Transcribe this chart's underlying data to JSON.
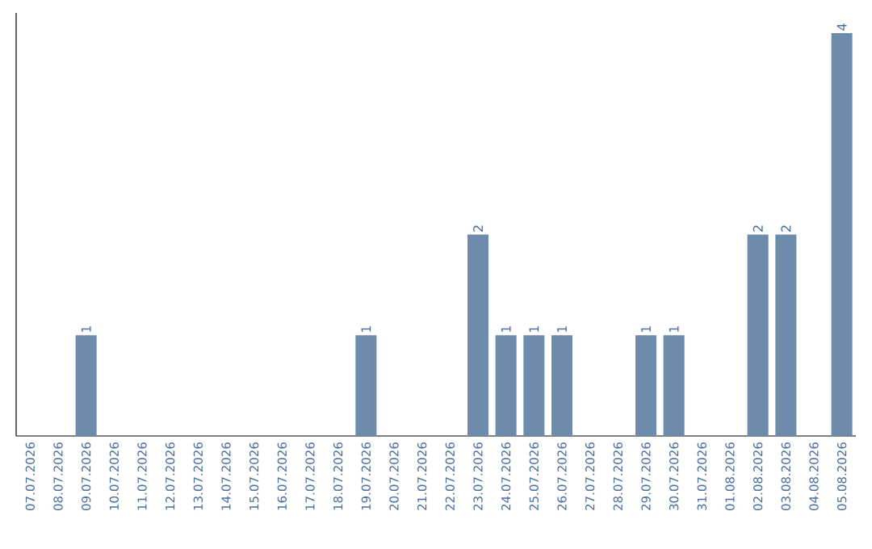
{
  "chart_data": {
    "type": "bar",
    "categories": [
      "07.07.2026",
      "08.07.2026",
      "09.07.2026",
      "10.07.2026",
      "11.07.2026",
      "12.07.2026",
      "13.07.2026",
      "14.07.2026",
      "15.07.2026",
      "16.07.2026",
      "17.07.2026",
      "18.07.2026",
      "19.07.2026",
      "20.07.2026",
      "21.07.2026",
      "22.07.2026",
      "23.07.2026",
      "24.07.2026",
      "25.07.2026",
      "26.07.2026",
      "27.07.2026",
      "28.07.2026",
      "29.07.2026",
      "30.07.2026",
      "31.07.2026",
      "01.08.2026",
      "02.08.2026",
      "03.08.2026",
      "04.08.2026",
      "05.08.2026"
    ],
    "values": [
      0,
      0,
      1,
      0,
      0,
      0,
      0,
      0,
      0,
      0,
      0,
      0,
      1,
      0,
      0,
      0,
      2,
      1,
      1,
      1,
      0,
      0,
      1,
      1,
      0,
      0,
      2,
      2,
      0,
      4
    ],
    "value_labels": [
      null,
      null,
      "1",
      null,
      null,
      null,
      null,
      null,
      null,
      null,
      null,
      null,
      "1",
      null,
      null,
      null,
      "2",
      "1",
      "1",
      "1",
      null,
      null,
      "1",
      "1",
      null,
      null,
      "2",
      "2",
      null,
      "4"
    ],
    "color": "#6d8bab",
    "tick_labels": "x",
    "grid": false
  }
}
